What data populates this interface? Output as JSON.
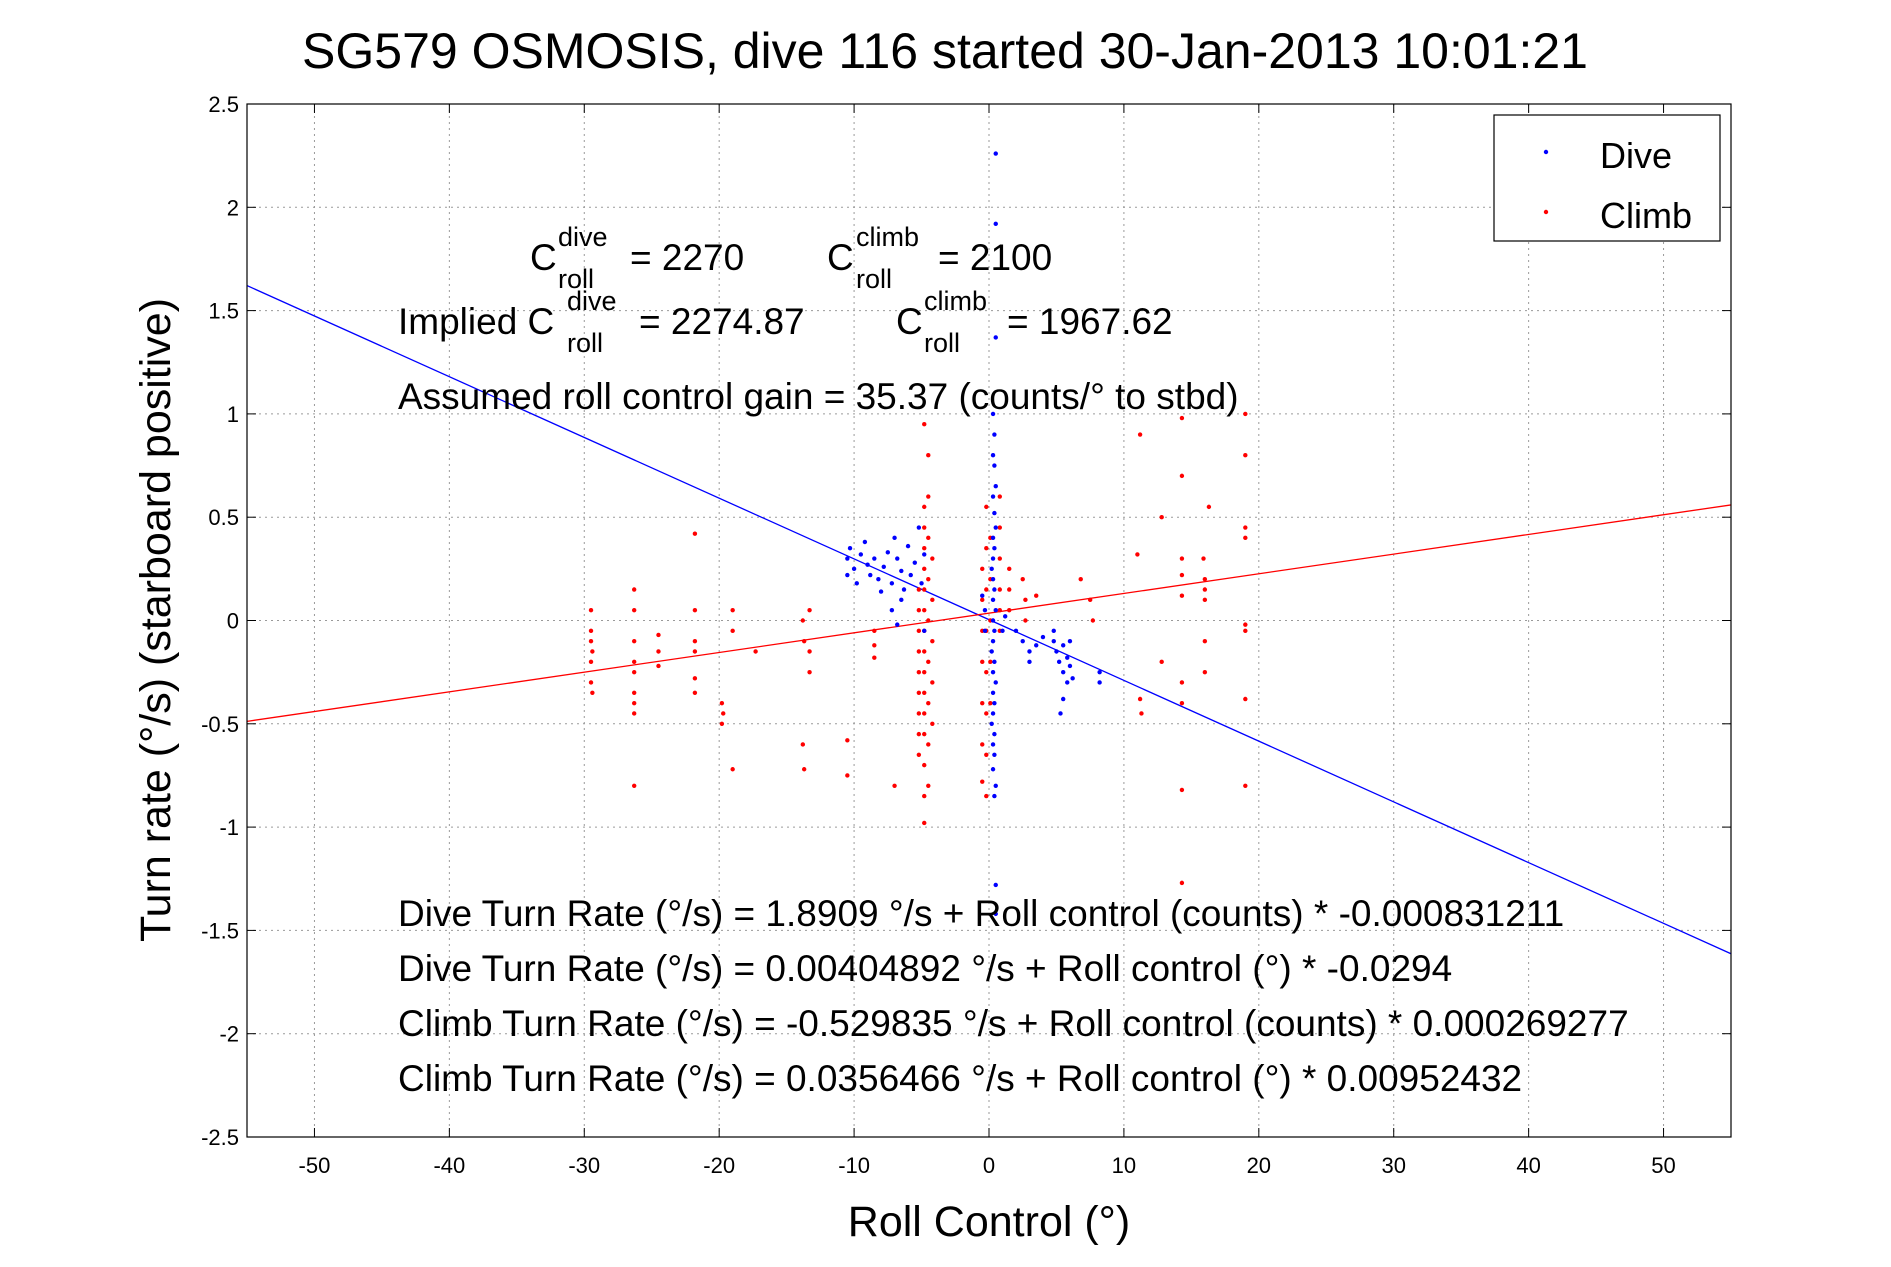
{
  "chart_data": {
    "type": "scatter",
    "title": "SG579 OSMOSIS, dive 116 started 30-Jan-2013 10:01:21",
    "xlabel": "Roll Control (°)",
    "ylabel": "Turn rate (°/s)  (starboard positive)",
    "xlim": [
      -55,
      55
    ],
    "ylim": [
      -2.5,
      2.5
    ],
    "x_ticks": [
      -50,
      -40,
      -30,
      -20,
      -10,
      0,
      10,
      20,
      30,
      40,
      50
    ],
    "y_ticks": [
      2.5,
      2,
      1.5,
      1,
      0.5,
      0,
      -0.5,
      -1,
      -1.5,
      -2,
      -2.5
    ],
    "x_tick_labels": [
      "-50",
      "-40",
      "-30",
      "-20",
      "-10",
      "0",
      "10",
      "20",
      "30",
      "40",
      "50"
    ],
    "y_tick_labels": [
      "2.5",
      "2",
      "1.5",
      "1",
      "0.5",
      "0",
      "-0.5",
      "-1",
      "-1.5",
      "-2",
      "-2.5"
    ],
    "grid": true,
    "legend_position": "top-right",
    "series": [
      {
        "name": "Dive",
        "color": "#0000ff",
        "points": [
          [
            -10.5,
            0.22
          ],
          [
            -10.5,
            0.3
          ],
          [
            -10.3,
            0.35
          ],
          [
            -10.0,
            0.25
          ],
          [
            -9.8,
            0.18
          ],
          [
            -9.5,
            0.32
          ],
          [
            -9.2,
            0.38
          ],
          [
            -9.0,
            0.27
          ],
          [
            -8.8,
            0.22
          ],
          [
            -8.5,
            0.3
          ],
          [
            -8.2,
            0.2
          ],
          [
            -8.0,
            0.14
          ],
          [
            -7.8,
            0.26
          ],
          [
            -7.5,
            0.33
          ],
          [
            -7.2,
            0.18
          ],
          [
            -7.0,
            0.4
          ],
          [
            -6.8,
            0.3
          ],
          [
            -6.5,
            0.24
          ],
          [
            -6.3,
            0.15
          ],
          [
            -6.0,
            0.36
          ],
          [
            -5.8,
            0.22
          ],
          [
            -5.5,
            0.28
          ],
          [
            -5.2,
            0.45
          ],
          [
            -5.0,
            0.18
          ],
          [
            -4.8,
            0.32
          ],
          [
            -4.8,
            -0.05
          ],
          [
            -6.8,
            -0.02
          ],
          [
            -7.2,
            0.05
          ],
          [
            -6.5,
            0.1
          ],
          [
            0.3,
            1.0
          ],
          [
            0.4,
            0.9
          ],
          [
            0.3,
            0.8
          ],
          [
            0.4,
            0.75
          ],
          [
            0.5,
            0.65
          ],
          [
            0.3,
            0.6
          ],
          [
            0.4,
            0.52
          ],
          [
            0.5,
            0.45
          ],
          [
            0.3,
            0.4
          ],
          [
            0.4,
            0.35
          ],
          [
            0.3,
            0.3
          ],
          [
            0.2,
            0.25
          ],
          [
            0.3,
            0.2
          ],
          [
            0.4,
            0.15
          ],
          [
            0.3,
            0.1
          ],
          [
            0.5,
            0.05
          ],
          [
            0.3,
            0.0
          ],
          [
            0.4,
            -0.05
          ],
          [
            0.3,
            -0.1
          ],
          [
            0.2,
            -0.15
          ],
          [
            0.4,
            -0.2
          ],
          [
            0.3,
            -0.25
          ],
          [
            0.5,
            -0.3
          ],
          [
            0.3,
            -0.35
          ],
          [
            0.4,
            -0.4
          ],
          [
            0.3,
            -0.45
          ],
          [
            0.2,
            -0.5
          ],
          [
            0.4,
            -0.55
          ],
          [
            0.3,
            -0.6
          ],
          [
            0.4,
            -0.65
          ],
          [
            0.3,
            -0.72
          ],
          [
            0.5,
            -0.8
          ],
          [
            0.4,
            -0.85
          ],
          [
            0.5,
            2.26
          ],
          [
            0.5,
            1.92
          ],
          [
            0.5,
            1.37
          ],
          [
            0.5,
            -1.28
          ],
          [
            0.5,
            -1.42
          ],
          [
            -0.3,
            0.05
          ],
          [
            -0.3,
            -0.05
          ],
          [
            -0.5,
            0.12
          ],
          [
            1.0,
            -0.05
          ],
          [
            1.2,
            0.02
          ],
          [
            2.0,
            -0.05
          ],
          [
            2.5,
            -0.1
          ],
          [
            3.0,
            -0.15
          ],
          [
            3.5,
            -0.12
          ],
          [
            3.0,
            -0.2
          ],
          [
            4.0,
            -0.08
          ],
          [
            4.8,
            -0.1
          ],
          [
            5.0,
            -0.15
          ],
          [
            5.2,
            -0.2
          ],
          [
            5.5,
            -0.12
          ],
          [
            5.5,
            -0.25
          ],
          [
            5.8,
            -0.18
          ],
          [
            5.8,
            -0.3
          ],
          [
            6.0,
            -0.22
          ],
          [
            6.0,
            -0.1
          ],
          [
            5.5,
            -0.38
          ],
          [
            6.2,
            -0.28
          ],
          [
            4.8,
            -0.05
          ],
          [
            8.2,
            -0.25
          ],
          [
            8.2,
            -0.3
          ],
          [
            5.3,
            -0.45
          ]
        ]
      },
      {
        "name": "Climb",
        "color": "#ff0000",
        "points": [
          [
            -29.5,
            0.05
          ],
          [
            -29.5,
            -0.05
          ],
          [
            -29.5,
            -0.1
          ],
          [
            -29.4,
            -0.15
          ],
          [
            -29.5,
            -0.2
          ],
          [
            -29.5,
            -0.3
          ],
          [
            -29.4,
            -0.35
          ],
          [
            -26.3,
            0.15
          ],
          [
            -26.3,
            0.05
          ],
          [
            -26.3,
            -0.1
          ],
          [
            -26.3,
            -0.2
          ],
          [
            -26.3,
            -0.25
          ],
          [
            -26.3,
            -0.35
          ],
          [
            -26.3,
            -0.4
          ],
          [
            -26.3,
            -0.45
          ],
          [
            -26.3,
            -0.8
          ],
          [
            -24.5,
            -0.07
          ],
          [
            -24.5,
            -0.15
          ],
          [
            -24.5,
            -0.22
          ],
          [
            -21.8,
            0.42
          ],
          [
            -21.8,
            0.05
          ],
          [
            -21.8,
            -0.1
          ],
          [
            -21.8,
            -0.15
          ],
          [
            -21.8,
            -0.28
          ],
          [
            -21.8,
            -0.35
          ],
          [
            -19.8,
            -0.4
          ],
          [
            -19.7,
            -0.45
          ],
          [
            -19.8,
            -0.5
          ],
          [
            -19.0,
            0.05
          ],
          [
            -19.0,
            -0.05
          ],
          [
            -19.0,
            -0.72
          ],
          [
            -17.3,
            -0.15
          ],
          [
            -13.8,
            0.0
          ],
          [
            -13.7,
            -0.1
          ],
          [
            -13.8,
            -0.6
          ],
          [
            -13.7,
            -0.72
          ],
          [
            -13.3,
            0.05
          ],
          [
            -13.3,
            -0.15
          ],
          [
            -13.3,
            -0.25
          ],
          [
            -10.5,
            -0.58
          ],
          [
            -10.5,
            -0.75
          ],
          [
            -8.5,
            -0.05
          ],
          [
            -8.5,
            -0.12
          ],
          [
            -8.5,
            -0.18
          ],
          [
            -7.0,
            -0.8
          ],
          [
            -5.2,
            0.15
          ],
          [
            -5.2,
            0.05
          ],
          [
            -5.2,
            -0.05
          ],
          [
            -5.2,
            -0.15
          ],
          [
            -5.2,
            -0.25
          ],
          [
            -5.2,
            -0.35
          ],
          [
            -5.2,
            -0.45
          ],
          [
            -5.2,
            -0.55
          ],
          [
            -5.2,
            -0.65
          ],
          [
            -4.8,
            0.95
          ],
          [
            -4.8,
            0.55
          ],
          [
            -4.8,
            0.45
          ],
          [
            -4.8,
            0.35
          ],
          [
            -4.8,
            0.25
          ],
          [
            -4.8,
            0.15
          ],
          [
            -4.8,
            0.05
          ],
          [
            -4.8,
            -0.05
          ],
          [
            -4.8,
            -0.15
          ],
          [
            -4.8,
            -0.25
          ],
          [
            -4.8,
            -0.35
          ],
          [
            -4.8,
            -0.45
          ],
          [
            -4.8,
            -0.55
          ],
          [
            -4.8,
            -0.7
          ],
          [
            -4.8,
            -0.85
          ],
          [
            -4.8,
            -0.98
          ],
          [
            -4.5,
            0.8
          ],
          [
            -4.5,
            0.6
          ],
          [
            -4.5,
            0.4
          ],
          [
            -4.5,
            0.2
          ],
          [
            -4.5,
            0.0
          ],
          [
            -4.5,
            -0.2
          ],
          [
            -4.5,
            -0.4
          ],
          [
            -4.5,
            -0.6
          ],
          [
            -4.5,
            -0.8
          ],
          [
            -4.2,
            0.3
          ],
          [
            -4.2,
            0.1
          ],
          [
            -4.2,
            -0.1
          ],
          [
            -4.2,
            -0.3
          ],
          [
            -4.2,
            -0.5
          ],
          [
            -0.5,
            0.25
          ],
          [
            -0.5,
            0.1
          ],
          [
            -0.5,
            -0.05
          ],
          [
            -0.5,
            -0.2
          ],
          [
            -0.5,
            -0.4
          ],
          [
            -0.5,
            -0.6
          ],
          [
            -0.5,
            -0.78
          ],
          [
            -0.2,
            0.55
          ],
          [
            -0.2,
            0.35
          ],
          [
            -0.2,
            0.15
          ],
          [
            -0.2,
            -0.05
          ],
          [
            -0.2,
            -0.25
          ],
          [
            -0.2,
            -0.45
          ],
          [
            -0.2,
            -0.65
          ],
          [
            -0.2,
            -0.85
          ],
          [
            0.1,
            0.4
          ],
          [
            0.1,
            0.2
          ],
          [
            0.1,
            0.0
          ],
          [
            0.1,
            -0.2
          ],
          [
            0.1,
            -0.4
          ],
          [
            0.8,
            0.6
          ],
          [
            0.8,
            0.45
          ],
          [
            0.8,
            0.3
          ],
          [
            0.8,
            0.15
          ],
          [
            0.8,
            0.05
          ],
          [
            0.8,
            -0.05
          ],
          [
            1.5,
            0.25
          ],
          [
            1.5,
            0.15
          ],
          [
            1.5,
            0.05
          ],
          [
            2.5,
            0.2
          ],
          [
            2.7,
            0.1
          ],
          [
            2.7,
            0.0
          ],
          [
            3.5,
            0.12
          ],
          [
            6.8,
            0.2
          ],
          [
            7.5,
            0.1
          ],
          [
            7.7,
            0.0
          ],
          [
            11.2,
            0.9
          ],
          [
            11.0,
            0.32
          ],
          [
            11.2,
            -0.38
          ],
          [
            11.3,
            -0.45
          ],
          [
            12.8,
            0.5
          ],
          [
            12.8,
            -0.2
          ],
          [
            14.3,
            0.98
          ],
          [
            14.3,
            0.7
          ],
          [
            14.3,
            0.3
          ],
          [
            14.3,
            0.22
          ],
          [
            14.3,
            0.12
          ],
          [
            14.3,
            -0.3
          ],
          [
            14.3,
            -0.4
          ],
          [
            14.3,
            -0.82
          ],
          [
            14.3,
            -1.27
          ],
          [
            15.9,
            0.3
          ],
          [
            16.0,
            0.2
          ],
          [
            16.0,
            0.15
          ],
          [
            16.0,
            0.1
          ],
          [
            16.0,
            -0.1
          ],
          [
            16.0,
            -0.25
          ],
          [
            16.3,
            0.55
          ],
          [
            19.0,
            1.0
          ],
          [
            19.0,
            0.8
          ],
          [
            19.0,
            0.45
          ],
          [
            19.0,
            0.4
          ],
          [
            19.0,
            -0.02
          ],
          [
            19.0,
            -0.05
          ],
          [
            19.0,
            -0.38
          ],
          [
            19.0,
            -0.8
          ]
        ]
      }
    ],
    "fit_lines": [
      {
        "series": "Dive",
        "color": "#0000ff",
        "intercept": 0.00404892,
        "slope": -0.0294
      },
      {
        "series": "Climb",
        "color": "#ff0000",
        "intercept": 0.0356466,
        "slope": 0.00952432
      }
    ],
    "annotations": {
      "c_dive_prefix": "C",
      "c_dive_sup": "dive",
      "c_dive_sub": "roll",
      "c_dive_value": "= 2270",
      "c_climb_prefix": "C",
      "c_climb_sup": "climb",
      "c_climb_sub": "roll",
      "c_climb_value": "= 2100",
      "implied_prefix": "Implied C",
      "implied_dive_sup": "dive",
      "implied_dive_sub": "roll",
      "implied_dive_value": "= 2274.87",
      "implied_climb_prefix": "C",
      "implied_climb_sup": "climb",
      "implied_climb_sub": "roll",
      "implied_climb_value": "= 1967.62",
      "gain": "Assumed roll control gain = 35.37 (counts/° to stbd)",
      "eq1": "Dive Turn Rate (°/s) = 1.8909 °/s + Roll control (counts) * -0.000831211",
      "eq2": "Dive Turn Rate (°/s) = 0.00404892 °/s + Roll control (°) * -0.0294",
      "eq3": "Climb Turn Rate (°/s) = -0.529835 °/s + Roll control (counts) * 0.000269277",
      "eq4": "Climb Turn Rate (°/s) = 0.0356466 °/s + Roll control (°) * 0.00952432"
    }
  }
}
